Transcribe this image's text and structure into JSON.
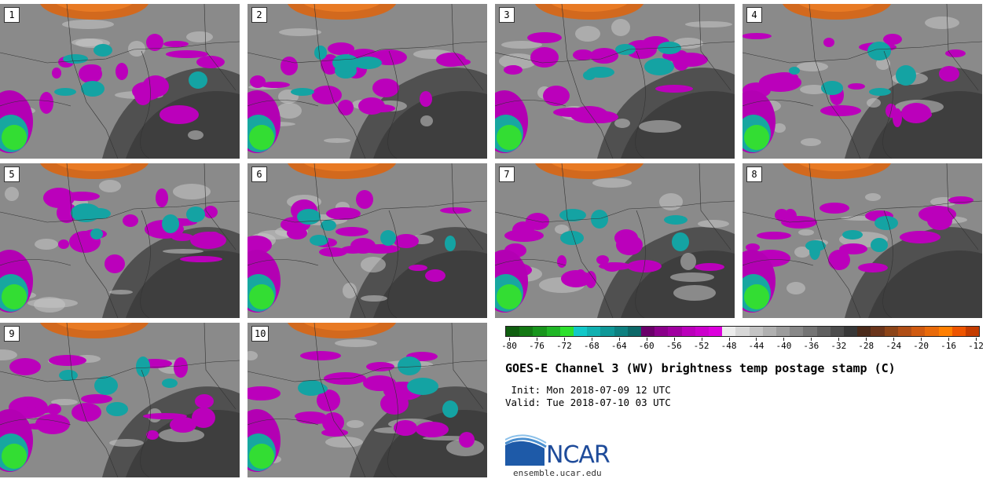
{
  "panels": [
    {
      "label": "1"
    },
    {
      "label": "2"
    },
    {
      "label": "3"
    },
    {
      "label": "4"
    },
    {
      "label": "5"
    },
    {
      "label": "6"
    },
    {
      "label": "7"
    },
    {
      "label": "8"
    },
    {
      "label": "9"
    },
    {
      "label": "10"
    }
  ],
  "colorbar": {
    "colors": [
      "#0f5e0f",
      "#137813",
      "#18951c",
      "#20b626",
      "#2ee02e",
      "#12c8c8",
      "#10b0b0",
      "#0f9898",
      "#0d8080",
      "#0c6868",
      "#6a006a",
      "#8a008a",
      "#a000a0",
      "#bb00bb",
      "#cc00cc",
      "#dd00dd",
      "#ececec",
      "#d7d7d7",
      "#c4c4c4",
      "#b0b0b0",
      "#9c9c9c",
      "#888888",
      "#747474",
      "#606060",
      "#4c4c4c",
      "#383838",
      "#4a2a1a",
      "#6b351b",
      "#8c4418",
      "#b04e16",
      "#d05a10",
      "#e86a0a",
      "#ff7f00",
      "#ee5500",
      "#c43c00"
    ],
    "tick_labels": [
      "-80",
      "-76",
      "-72",
      "-68",
      "-64",
      "-60",
      "-56",
      "-52",
      "-48",
      "-44",
      "-40",
      "-36",
      "-32",
      "-28",
      "-24",
      "-20",
      "-16",
      "-12"
    ]
  },
  "title": "GOES-E Channel 3 (WV) brightness temp postage stamp (C)",
  "init": " Init: Mon 2018-07-09 12 UTC",
  "valid": "Valid: Tue 2018-07-10 03 UTC",
  "logo_text": "NCAR",
  "url": "ensemble.ucar.edu"
}
